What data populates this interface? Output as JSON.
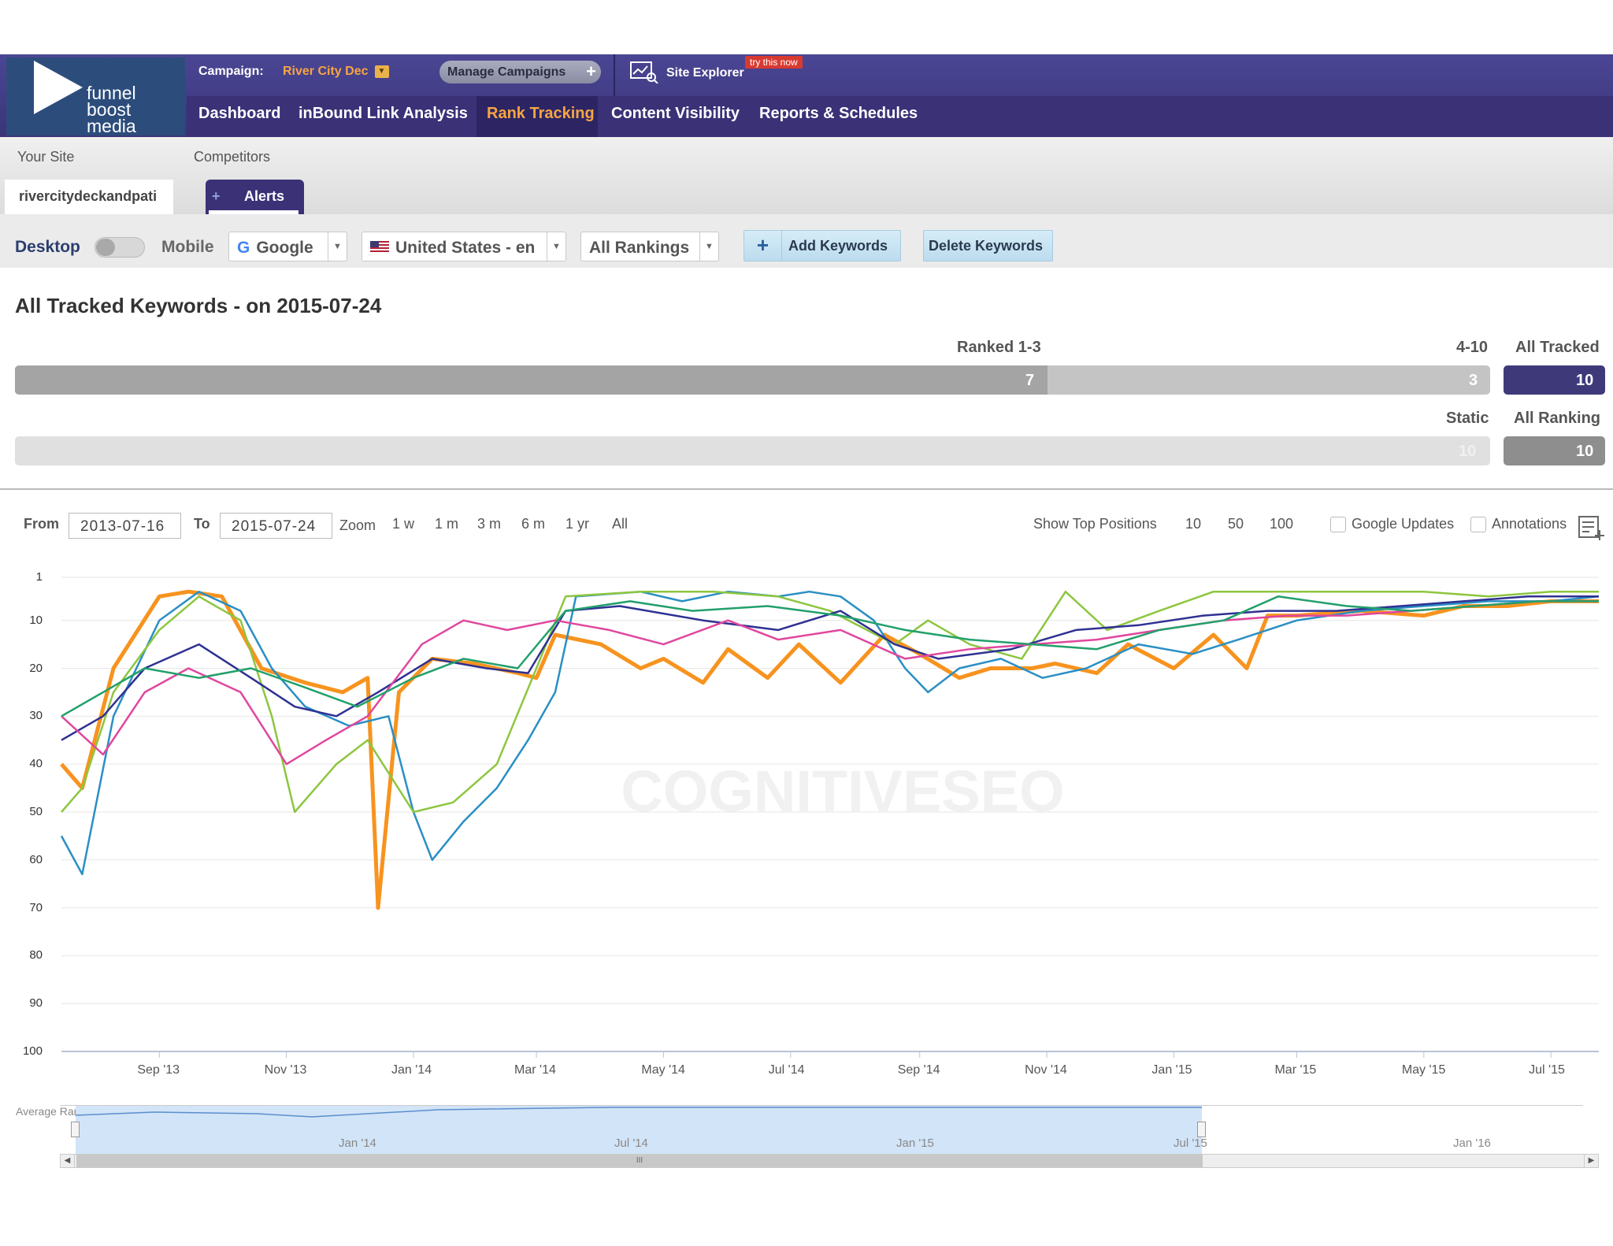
{
  "header": {
    "logo_lines": [
      "funnel",
      "boost",
      "media"
    ],
    "campaign_label": "Campaign:",
    "campaign_value": "River City Dec",
    "manage_campaigns": "Manage Campaigns",
    "site_explorer": "Site Explorer",
    "try_badge": "try this now"
  },
  "nav": {
    "items": [
      "Dashboard",
      "inBound Link Analysis",
      "Rank Tracking",
      "Content Visibility",
      "Reports & Schedules"
    ],
    "active": "Rank Tracking"
  },
  "subnav": {
    "your_site_label": "Your Site",
    "competitors_label": "Competitors",
    "site_tab": "rivercitydeckandpati",
    "alerts_tab": "Alerts"
  },
  "filters": {
    "desktop": "Desktop",
    "mobile": "Mobile",
    "engine": "Google",
    "country": "United States - en",
    "rankings": "All Rankings",
    "add_keywords": "Add Keywords",
    "delete_keywords": "Delete Keywords"
  },
  "summary": {
    "title": "All Tracked Keywords - on 2015-07-24",
    "ranked_label": "Ranked 1-3",
    "mid_label": "4-10",
    "tracked_label": "All Tracked",
    "ranked_value": "7",
    "mid_value": "3",
    "tracked_value": "10",
    "static_label": "Static",
    "all_ranking_label": "All Ranking",
    "static_value": "10",
    "all_ranking_value": "10"
  },
  "toolbar": {
    "from_label": "From",
    "from_value": "2013-07-16",
    "to_label": "To",
    "to_value": "2015-07-24",
    "zoom_label": "Zoom",
    "zoom_options": [
      "1 w",
      "1 m",
      "3 m",
      "6 m",
      "1 yr",
      "All"
    ],
    "top_positions_label": "Show Top Positions",
    "top_positions": [
      "10",
      "50",
      "100"
    ],
    "google_updates": "Google Updates",
    "annotations": "Annotations"
  },
  "chart_data": {
    "type": "line",
    "y_reversed": true,
    "ylim": [
      1,
      100
    ],
    "yticks": [
      "1",
      "10",
      "20",
      "30",
      "40",
      "50",
      "60",
      "70",
      "80",
      "90",
      "100"
    ],
    "xticks": [
      "Sep '13",
      "Nov '13",
      "Jan '14",
      "Mar '14",
      "May '14",
      "Jul '14",
      "Sep '14",
      "Nov '14",
      "Jan '15",
      "Mar '15",
      "May '15",
      "Jul '15"
    ],
    "x_range": [
      "2013-07-16",
      "2015-07-24"
    ],
    "watermark": "COGNITIVESEO",
    "navigator_label": "Average Rank",
    "navigator_ticks": [
      "Jan '14",
      "Jul '14",
      "Jan '15",
      "Jul '15",
      "Jan '16"
    ],
    "series": [
      {
        "color": "#f7931e",
        "x": [
          "2013-07-16",
          "2013-07-26",
          "2013-08-10",
          "2013-09-01",
          "2013-09-15",
          "2013-10-01",
          "2013-10-20",
          "2013-11-10",
          "2013-11-28",
          "2013-12-10",
          "2013-12-15",
          "2013-12-25",
          "2014-01-10",
          "2014-01-30",
          "2014-02-20",
          "2014-03-01",
          "2014-03-10",
          "2014-04-01",
          "2014-04-20",
          "2014-05-01",
          "2014-05-20",
          "2014-06-01",
          "2014-06-20",
          "2014-07-05",
          "2014-07-25",
          "2014-08-15",
          "2014-09-01",
          "2014-09-20",
          "2014-10-05",
          "2014-10-25",
          "2014-11-05",
          "2014-11-25",
          "2014-12-10",
          "2015-01-01",
          "2015-01-20",
          "2015-02-05",
          "2015-02-15",
          "2015-03-01",
          "2015-04-01",
          "2015-05-01",
          "2015-05-20",
          "2015-06-10",
          "2015-07-01",
          "2015-07-24"
        ],
        "y": [
          40,
          45,
          20,
          5,
          4,
          5,
          20,
          23,
          25,
          22,
          70,
          25,
          18,
          19,
          21,
          22,
          13,
          15,
          20,
          18,
          23,
          16,
          22,
          15,
          23,
          13,
          17,
          22,
          20,
          20,
          19,
          21,
          15,
          20,
          13,
          20,
          9,
          9,
          8,
          9,
          7,
          7,
          6,
          6
        ]
      },
      {
        "color": "#2a8fc4",
        "x": [
          "2013-07-16",
          "2013-07-26",
          "2013-08-10",
          "2013-09-01",
          "2013-09-20",
          "2013-10-10",
          "2013-10-25",
          "2013-11-10",
          "2013-12-01",
          "2013-12-20",
          "2014-01-01",
          "2014-01-10",
          "2014-01-25",
          "2014-02-10",
          "2014-02-25",
          "2014-03-10",
          "2014-03-20",
          "2014-04-20",
          "2014-05-10",
          "2014-06-01",
          "2014-06-25",
          "2014-07-10",
          "2014-07-25",
          "2014-08-10",
          "2014-08-25",
          "2014-09-05",
          "2014-09-20",
          "2014-10-10",
          "2014-10-30",
          "2014-11-20",
          "2014-12-15",
          "2015-01-10",
          "2015-02-01",
          "2015-03-01",
          "2015-04-01",
          "2015-05-01",
          "2015-06-01",
          "2015-07-01",
          "2015-07-24"
        ],
        "y": [
          55,
          63,
          30,
          10,
          4,
          8,
          20,
          28,
          32,
          30,
          50,
          60,
          52,
          45,
          35,
          25,
          5,
          4,
          6,
          4,
          5,
          4,
          5,
          10,
          20,
          25,
          20,
          18,
          22,
          20,
          15,
          17,
          14,
          10,
          8,
          7,
          6,
          6,
          5
        ]
      },
      {
        "color": "#8dc63f",
        "x": [
          "2013-07-16",
          "2013-07-26",
          "2013-08-10",
          "2013-09-01",
          "2013-09-20",
          "2013-10-10",
          "2013-10-25",
          "2013-11-05",
          "2013-11-25",
          "2013-12-10",
          "2014-01-01",
          "2014-01-20",
          "2014-02-10",
          "2014-03-01",
          "2014-03-15",
          "2014-04-20",
          "2014-05-25",
          "2014-06-25",
          "2014-07-20",
          "2014-08-20",
          "2014-09-05",
          "2014-09-25",
          "2014-10-20",
          "2014-11-10",
          "2014-11-30",
          "2014-12-25",
          "2015-01-20",
          "2015-02-25",
          "2015-04-01",
          "2015-05-01",
          "2015-06-01",
          "2015-07-01",
          "2015-07-24"
        ],
        "y": [
          50,
          45,
          25,
          12,
          5,
          10,
          30,
          50,
          40,
          35,
          50,
          48,
          40,
          20,
          5,
          4,
          4,
          5,
          8,
          15,
          10,
          15,
          18,
          4,
          12,
          8,
          4,
          4,
          4,
          4,
          5,
          4,
          4
        ]
      },
      {
        "color": "#2e3192",
        "x": [
          "2013-07-16",
          "2013-08-05",
          "2013-08-25",
          "2013-09-20",
          "2013-10-15",
          "2013-11-05",
          "2013-11-25",
          "2013-12-15",
          "2014-01-10",
          "2014-02-05",
          "2014-02-25",
          "2014-03-15",
          "2014-04-10",
          "2014-05-20",
          "2014-06-25",
          "2014-07-25",
          "2014-08-20",
          "2014-09-10",
          "2014-10-15",
          "2014-11-15",
          "2014-12-15",
          "2015-01-15",
          "2015-02-15",
          "2015-03-20",
          "2015-04-20",
          "2015-05-20",
          "2015-06-20",
          "2015-07-24"
        ],
        "y": [
          35,
          30,
          20,
          15,
          22,
          28,
          30,
          25,
          18,
          20,
          21,
          8,
          7,
          10,
          12,
          8,
          15,
          18,
          16,
          12,
          11,
          9,
          8,
          8,
          7,
          6,
          5,
          5
        ]
      },
      {
        "color": "#e0479e",
        "x": [
          "2013-07-16",
          "2013-08-05",
          "2013-08-25",
          "2013-09-15",
          "2013-10-10",
          "2013-11-01",
          "2013-11-20",
          "2013-12-10",
          "2014-01-05",
          "2014-01-25",
          "2014-02-15",
          "2014-03-10",
          "2014-04-05",
          "2014-05-01",
          "2014-06-01",
          "2014-06-25",
          "2014-07-25",
          "2014-08-25",
          "2014-09-25",
          "2014-10-25",
          "2014-11-25",
          "2014-12-25",
          "2015-01-25",
          "2015-02-25",
          "2015-03-25",
          "2015-04-25",
          "2015-05-25",
          "2015-06-25",
          "2015-07-24"
        ],
        "y": [
          30,
          38,
          25,
          20,
          25,
          40,
          35,
          30,
          15,
          10,
          12,
          10,
          12,
          15,
          10,
          14,
          12,
          18,
          16,
          15,
          14,
          12,
          10,
          9,
          9,
          8,
          7,
          6,
          6
        ]
      },
      {
        "color": "#22a06b",
        "x": [
          "2013-07-16",
          "2013-08-05",
          "2013-08-25",
          "2013-09-20",
          "2013-10-15",
          "2013-11-10",
          "2013-12-05",
          "2014-01-01",
          "2014-01-25",
          "2014-02-20",
          "2014-03-15",
          "2014-04-15",
          "2014-05-15",
          "2014-06-20",
          "2014-07-25",
          "2014-08-25",
          "2014-09-25",
          "2014-10-25",
          "2014-11-25",
          "2014-12-25",
          "2015-01-25",
          "2015-02-20",
          "2015-03-25",
          "2015-04-25",
          "2015-05-25",
          "2015-06-25",
          "2015-07-24"
        ],
        "y": [
          30,
          25,
          20,
          22,
          20,
          24,
          28,
          22,
          18,
          20,
          8,
          6,
          8,
          7,
          9,
          12,
          14,
          15,
          16,
          12,
          10,
          5,
          7,
          8,
          7,
          6,
          6
        ]
      }
    ]
  }
}
